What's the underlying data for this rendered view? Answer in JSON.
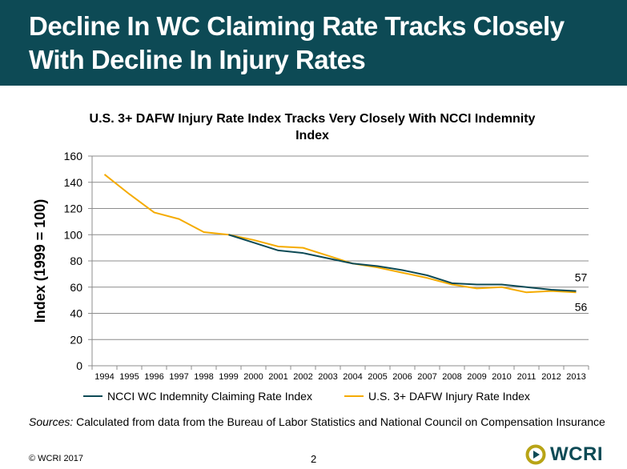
{
  "slide": {
    "title": "Decline In WC Claiming Rate Tracks Closely With Decline In Injury Rates",
    "sources_label": "Sources:",
    "sources_text": " Calculated from data from the Bureau of Labor Statistics and National Council on Compensation Insurance",
    "copyright": "© WCRI 2017",
    "page_number": "2",
    "logo_text": "WCRI",
    "header_color": "#0d4a55"
  },
  "chart_data": {
    "type": "line",
    "title": "U.S. 3+ DAFW Injury Rate Index Tracks Very Closely With NCCI Indemnity Index",
    "xlabel": "",
    "ylabel": "Index (1999 = 100)",
    "ylim": [
      0,
      160
    ],
    "yticks": [
      0,
      20,
      40,
      60,
      80,
      100,
      120,
      140,
      160
    ],
    "grid": true,
    "legend": "bottom",
    "categories": [
      "1994",
      "1995",
      "1996",
      "1997",
      "1998",
      "1999",
      "2000",
      "2001",
      "2002",
      "2003",
      "2004",
      "2005",
      "2006",
      "2007",
      "2008",
      "2009",
      "2010",
      "2011",
      "2012",
      "2013"
    ],
    "series": [
      {
        "name": "NCCI WC Indemnity Claiming Rate Index",
        "color": "#0d4a55",
        "values": [
          null,
          null,
          null,
          null,
          null,
          100,
          94,
          88,
          86,
          82,
          78,
          76,
          73,
          69,
          63,
          62,
          62,
          60,
          58,
          57
        ]
      },
      {
        "name": "U.S. 3+ DAFW Injury Rate Index",
        "color": "#f5ab00",
        "values": [
          146,
          131,
          117,
          112,
          102,
          100,
          96,
          91,
          90,
          84,
          78,
          75,
          71,
          67,
          62,
          59,
          60,
          56,
          57,
          56
        ]
      }
    ],
    "annotations": [
      {
        "series": 0,
        "category": "2013",
        "text": "57"
      },
      {
        "series": 1,
        "category": "2013",
        "text": "56"
      }
    ]
  }
}
